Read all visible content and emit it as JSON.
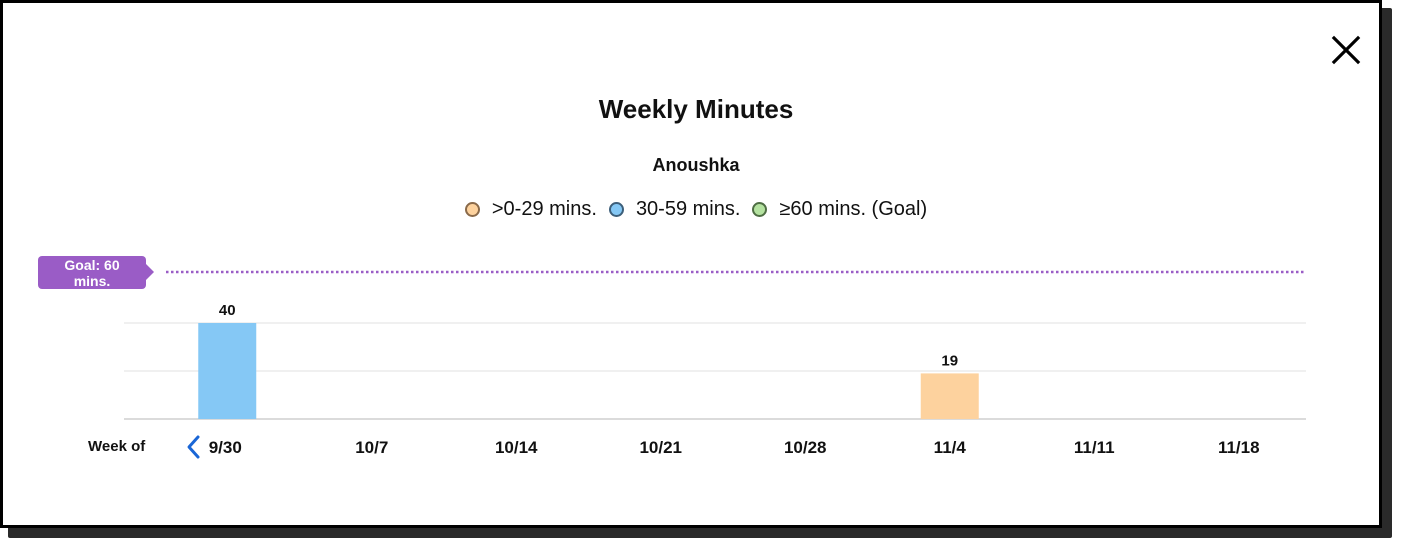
{
  "modal": {
    "close_icon": "close-icon",
    "prev_icon": "chevron-left-icon"
  },
  "colors": {
    "orange": "#fdd29e",
    "blue": "#85c8f5",
    "green": "#b4e2a0",
    "goal": "#9a5cc6",
    "prev_arrow": "#1a66d6"
  },
  "chart_data": {
    "type": "bar",
    "title": "Weekly Minutes",
    "subtitle": "Anoushka",
    "legend": [
      {
        "label": ">0-29 mins.",
        "color": "#fdd29e",
        "border": "#8a6a4a"
      },
      {
        "label": "30-59 mins.",
        "color": "#85c8f5",
        "border": "#3d5f7a"
      },
      {
        "label": "≥60 mins. (Goal)",
        "color": "#b4e2a0",
        "border": "#4f6e44"
      }
    ],
    "legend_position": "top-center",
    "x_label": "Week of",
    "categories": [
      "9/30",
      "10/7",
      "10/14",
      "10/21",
      "10/28",
      "11/4",
      "11/11",
      "11/18"
    ],
    "values": [
      40,
      null,
      null,
      null,
      null,
      19,
      null,
      null
    ],
    "bar_colors": [
      "#85c8f5",
      null,
      null,
      null,
      null,
      "#fdd29e",
      null,
      null
    ],
    "goal": {
      "value": 60,
      "label_line1": "Goal: 60",
      "label_line2": "mins."
    },
    "ylim": [
      0,
      40
    ],
    "gridlines": [
      0,
      20,
      40
    ],
    "grid": true
  }
}
